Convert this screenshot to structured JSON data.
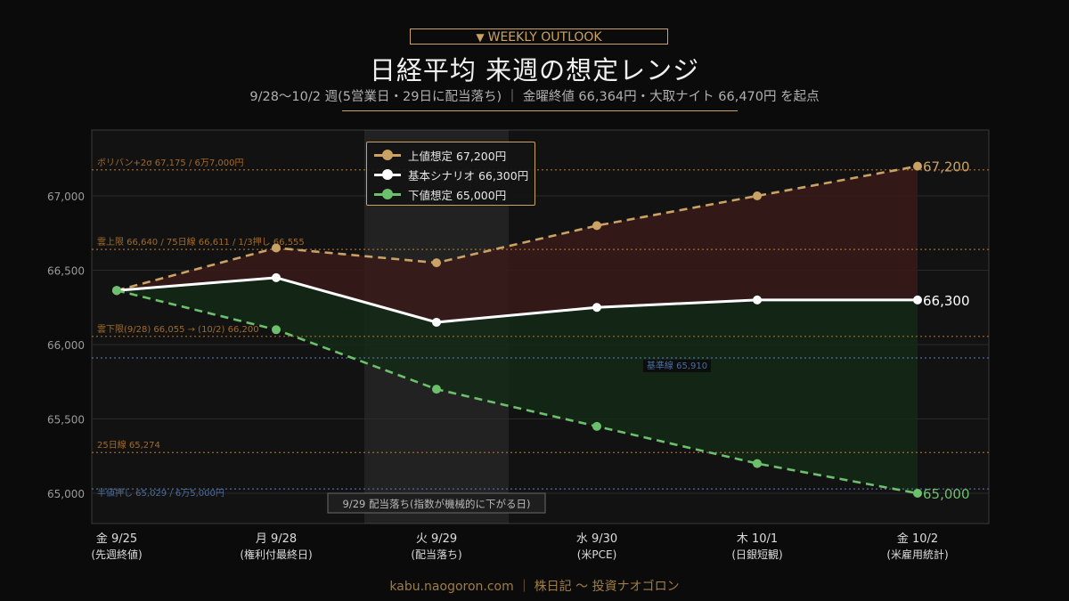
{
  "header": {
    "badge_label": "WEEKLY OUTLOOK",
    "title": "日経平均 来週の想定レンジ",
    "subtitle": "9/28〜10/2 週(5営業日・29日に配当落ち) ｜ 金曜終値 66,364円・大取ナイト 66,470円 を起点"
  },
  "footer": {
    "text": "kabu.naogoron.com ｜ 株日記 〜 投資ナオゴロン"
  },
  "colors": {
    "upper": "#c9a264",
    "base": "#ffffff",
    "lower": "#6cc06c",
    "orange_ref": "#a26a26",
    "blue_ref": "#4d6c9e",
    "fill_red": "#3a1a1a",
    "fill_green": "#142a16"
  },
  "chart_data": {
    "type": "line",
    "categories": [
      "金 9/25",
      "月 9/28",
      "火 9/29",
      "水 9/30",
      "木 10/1",
      "金 10/2"
    ],
    "category_notes": [
      "(先週終値)",
      "(権利付最終日)",
      "(配当落ち)",
      "(米PCE)",
      "(日銀短観)",
      "(米雇用統計)"
    ],
    "ylim": [
      64800,
      67400
    ],
    "yticks": [
      65000,
      65500,
      66000,
      66500,
      67000
    ],
    "ytick_labels": [
      "65,000",
      "65,500",
      "66,000",
      "66,500",
      "67,000"
    ],
    "grid": true,
    "series": [
      {
        "name": "上値想定 67,200円",
        "key": "upper",
        "values": [
          66364,
          66650,
          66550,
          66800,
          67000,
          67200
        ],
        "style": "dashed",
        "end_label": "67,200"
      },
      {
        "name": "基本シナリオ 66,300円",
        "key": "base",
        "values": [
          66364,
          66450,
          66150,
          66250,
          66300,
          66300
        ],
        "style": "solid",
        "end_label": "66,300"
      },
      {
        "name": "下値想定 65,000円",
        "key": "lower",
        "values": [
          66364,
          66100,
          65700,
          65450,
          65200,
          65000
        ],
        "style": "dashed",
        "end_label": "65,000"
      }
    ],
    "reference_lines": [
      {
        "value": 67175,
        "label": "ボリバン+2σ 67,175 / 6万7,000円",
        "color": "orange"
      },
      {
        "value": 66640,
        "label": "雲上限 66,640 / 75日線 66,611 / 1/3押し 66,555",
        "color": "orange"
      },
      {
        "value": 66055,
        "label": "雲下限(9/28) 66,055 → (10/2) 66,200",
        "color": "orange"
      },
      {
        "value": 65910,
        "label": "基準線 65,910",
        "color": "blue"
      },
      {
        "value": 65274,
        "label": "25日線 65,274",
        "color": "orange"
      },
      {
        "value": 65029,
        "label": "半値押し 65,029 / 6万5,000円",
        "color": "blue"
      }
    ],
    "highlight": {
      "category": "火 9/29",
      "label": "9/29 配当落ち(指数が機械的に下がる日)"
    },
    "legend_position": "top-center"
  }
}
